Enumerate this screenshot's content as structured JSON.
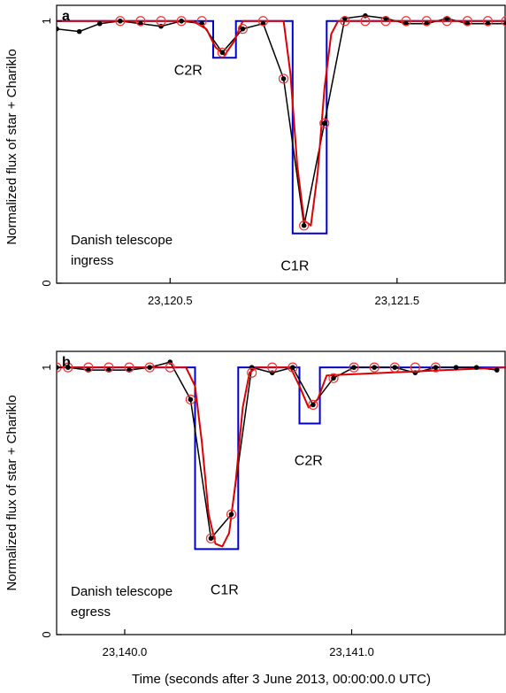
{
  "figure": {
    "ylabel": "Normalized flux of star + Chariklo",
    "xlabel": "Time (seconds after 3 June 2013, 00:00:00.0 UTC)"
  },
  "colors": {
    "observed": "#000000",
    "model_square": "#0000cc",
    "model_smooth": "#dd0000",
    "synthetic_points": "#ee3333"
  },
  "chart_data": [
    {
      "type": "line",
      "panel_label": "a",
      "annotation_line1": "Danish telescope",
      "annotation_line2": "ingress",
      "labels": {
        "C2R": {
          "text": "C2R",
          "x": 23120.58,
          "y": 0.89
        },
        "C1R": {
          "text": "C1R",
          "x": 23121.05,
          "y": 0.15
        }
      },
      "xlim": [
        23120.0,
        23121.98
      ],
      "ylim": [
        0,
        1.06
      ],
      "xticks": [
        23120.5,
        23121.5
      ],
      "xtick_labels": [
        "23,120.5",
        "23,121.5"
      ],
      "yticks": [
        0,
        1
      ],
      "ytick_labels": [
        "0",
        "1"
      ],
      "grid": false,
      "series": [
        {
          "kind": "observed",
          "x": [
            23120.0,
            23120.1,
            23120.19,
            23120.28,
            23120.37,
            23120.46,
            23120.55,
            23120.64,
            23120.73,
            23120.82,
            23120.91,
            23121.0,
            23121.09,
            23121.18,
            23121.27,
            23121.36,
            23121.45,
            23121.54,
            23121.63,
            23121.72,
            23121.81,
            23121.9,
            23121.98
          ],
          "y": [
            0.97,
            0.96,
            0.99,
            1.0,
            0.99,
            0.98,
            1.0,
            0.99,
            0.88,
            0.97,
            0.99,
            0.78,
            0.22,
            0.61,
            1.01,
            1.02,
            1.01,
            0.99,
            0.99,
            1.01,
            0.99,
            0.99,
            0.99
          ]
        },
        {
          "kind": "synthetic",
          "x": [
            23120.28,
            23120.37,
            23120.46,
            23120.55,
            23120.64,
            23120.73,
            23120.82,
            23120.91,
            23121.0,
            23121.09,
            23121.18,
            23121.27,
            23121.36,
            23121.45,
            23121.54,
            23121.63,
            23121.72,
            23121.81,
            23121.9,
            23121.98
          ],
          "y": [
            1.0,
            1.0,
            1.0,
            1.0,
            1.0,
            0.88,
            0.97,
            1.0,
            0.78,
            0.22,
            0.61,
            1.0,
            1.0,
            1.0,
            1.0,
            1.0,
            1.0,
            1.0,
            1.0,
            1.0
          ]
        },
        {
          "kind": "square",
          "x": [
            23120.0,
            23120.69,
            23120.69,
            23120.79,
            23120.79,
            23121.04,
            23121.04,
            23121.19,
            23121.19,
            23121.98
          ],
          "y": [
            1.0,
            1.0,
            0.86,
            0.86,
            1.0,
            1.0,
            0.19,
            0.19,
            1.0,
            1.0
          ]
        },
        {
          "kind": "smooth",
          "x": [
            23120.0,
            23120.6,
            23120.66,
            23120.7,
            23120.74,
            23120.78,
            23120.82,
            23121.0,
            23121.03,
            23121.06,
            23121.09,
            23121.12,
            23121.15,
            23121.18,
            23121.21,
            23121.24,
            23121.98
          ],
          "y": [
            1.0,
            1.0,
            0.97,
            0.9,
            0.87,
            0.92,
            1.0,
            1.0,
            0.8,
            0.45,
            0.24,
            0.22,
            0.42,
            0.74,
            0.95,
            1.0,
            1.0
          ]
        }
      ]
    },
    {
      "type": "line",
      "panel_label": "b",
      "annotation_line1": "Danish telescope",
      "annotation_line2": "egress",
      "labels": {
        "C1R": {
          "text": "C1R",
          "x": 23140.44,
          "y": 0.25
        },
        "C2R": {
          "text": "C2R",
          "x": 23140.81,
          "y": 0.72
        }
      },
      "xlim": [
        23139.7,
        23141.68
      ],
      "ylim": [
        0,
        1.06
      ],
      "xticks": [
        23140.0,
        23141.0
      ],
      "xtick_labels": [
        "23,140.0",
        "23,141.0"
      ],
      "yticks": [
        0,
        1
      ],
      "ytick_labels": [
        "0",
        "1"
      ],
      "grid": false,
      "series": [
        {
          "kind": "observed",
          "x": [
            23139.7,
            23139.75,
            23139.84,
            23139.93,
            23140.02,
            23140.11,
            23140.2,
            23140.29,
            23140.38,
            23140.47,
            23140.56,
            23140.65,
            23140.74,
            23140.83,
            23140.92,
            23141.01,
            23141.1,
            23141.19,
            23141.28,
            23141.37,
            23141.46,
            23141.55,
            23141.64
          ],
          "y": [
            1.0,
            1.0,
            0.99,
            0.99,
            0.99,
            1.0,
            1.02,
            0.88,
            0.36,
            0.45,
            1.0,
            0.98,
            1.0,
            0.86,
            0.96,
            1.0,
            1.0,
            1.0,
            0.98,
            1.0,
            1.0,
            1.0,
            0.99
          ]
        },
        {
          "kind": "synthetic",
          "x": [
            23139.7,
            23139.75,
            23139.84,
            23139.93,
            23140.02,
            23140.11,
            23140.2,
            23140.29,
            23140.38,
            23140.47,
            23140.56,
            23140.65,
            23140.74,
            23140.83,
            23140.92,
            23141.01,
            23141.1,
            23141.19,
            23141.28,
            23141.37
          ],
          "y": [
            1.0,
            1.0,
            1.0,
            1.0,
            1.0,
            1.0,
            1.0,
            0.88,
            0.36,
            0.45,
            0.98,
            1.0,
            1.0,
            0.86,
            0.96,
            1.0,
            1.0,
            1.0,
            1.0,
            1.0
          ]
        },
        {
          "kind": "square",
          "x": [
            23139.7,
            23140.31,
            23140.31,
            23140.5,
            23140.5,
            23140.77,
            23140.77,
            23140.86,
            23140.86,
            23141.68
          ],
          "y": [
            1.0,
            1.0,
            0.32,
            0.32,
            1.0,
            1.0,
            0.79,
            0.79,
            1.0,
            1.0
          ]
        },
        {
          "kind": "smooth",
          "x": [
            23139.7,
            23140.27,
            23140.31,
            23140.34,
            23140.37,
            23140.4,
            23140.43,
            23140.46,
            23140.49,
            23140.52,
            23140.55,
            23140.58,
            23140.73,
            23140.77,
            23140.81,
            23140.85,
            23140.89,
            23141.68
          ],
          "y": [
            1.0,
            1.0,
            0.93,
            0.72,
            0.45,
            0.34,
            0.33,
            0.38,
            0.58,
            0.85,
            0.98,
            1.0,
            1.0,
            0.93,
            0.85,
            0.88,
            0.97,
            1.0
          ]
        }
      ]
    }
  ]
}
